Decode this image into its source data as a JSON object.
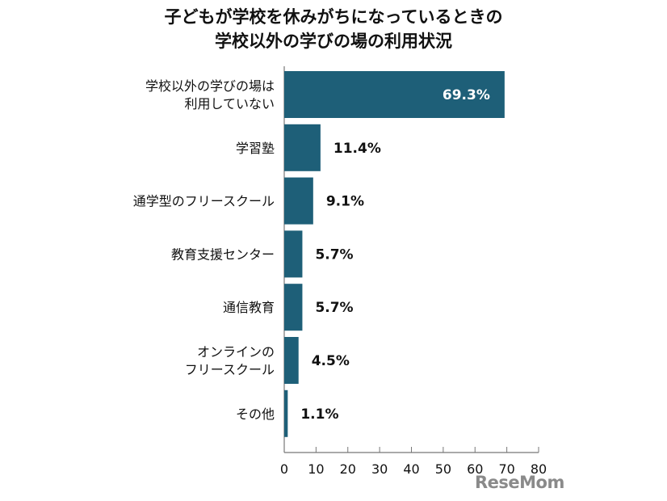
{
  "chart_data": {
    "type": "bar",
    "orientation": "horizontal",
    "title_lines": [
      "子どもが学校を休みがちになっているときの",
      "学校以外の学びの場の利用状況"
    ],
    "categories": [
      [
        "学校以外の学びの場は",
        "利用していない"
      ],
      [
        "学習塾"
      ],
      [
        "通学型のフリースクール"
      ],
      [
        "教育支援センター"
      ],
      [
        "通信教育"
      ],
      [
        "オンラインの",
        "フリースクール"
      ],
      [
        "その他"
      ]
    ],
    "values": [
      69.3,
      11.4,
      9.1,
      5.7,
      5.7,
      4.5,
      1.1
    ],
    "value_labels": [
      "69.3%",
      "11.4%",
      "9.1%",
      "5.7%",
      "5.7%",
      "4.5%",
      "1.1%"
    ],
    "xlim": [
      0,
      80
    ],
    "xticks": [
      0,
      10,
      20,
      30,
      40,
      50,
      60,
      70,
      80
    ],
    "grid": false,
    "bar_color": "#1e5f78"
  },
  "watermark": "ReseMom"
}
